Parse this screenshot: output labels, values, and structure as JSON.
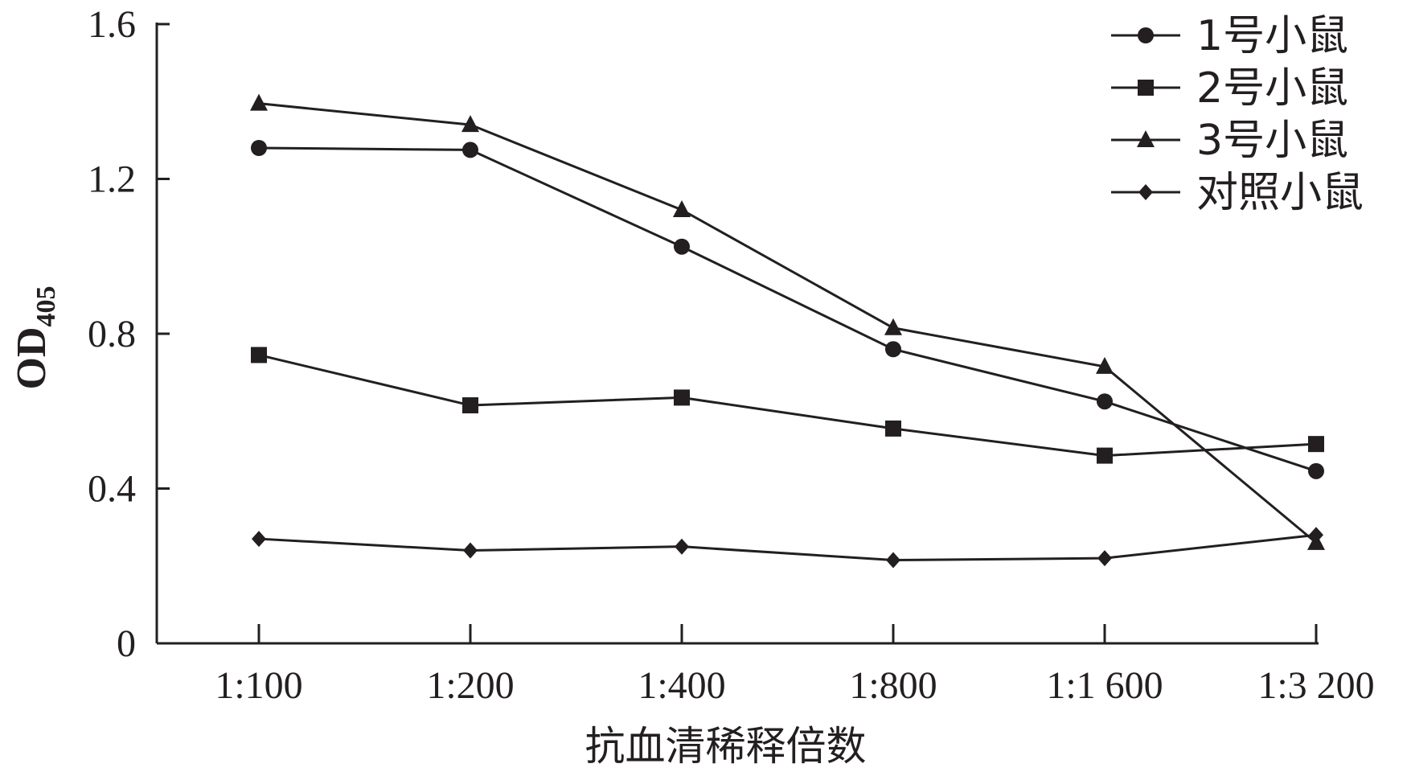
{
  "chart_data": {
    "type": "line",
    "title": "",
    "xlabel": "抗血清稀释倍数",
    "ylabel": "OD",
    "ylabel_subscript": "405",
    "categories": [
      "1:100",
      "1:200",
      "1:400",
      "1:800",
      "1:1 600",
      "1:3 200"
    ],
    "ylim": [
      0,
      1.6
    ],
    "yticks": [
      0,
      0.4,
      0.8,
      1.2,
      1.6
    ],
    "ytick_labels": [
      "0",
      "0.4",
      "0.8",
      "1.2",
      "1.6"
    ],
    "grid": false,
    "legend_position": "top-right",
    "series": [
      {
        "name": "1号小鼠",
        "marker": "circle",
        "values": [
          1.28,
          1.275,
          1.025,
          0.76,
          0.625,
          0.445
        ]
      },
      {
        "name": "2号小鼠",
        "marker": "square",
        "values": [
          0.745,
          0.615,
          0.635,
          0.555,
          0.485,
          0.515
        ]
      },
      {
        "name": "3号小鼠",
        "marker": "triangle",
        "values": [
          1.395,
          1.34,
          1.12,
          0.815,
          0.715,
          0.26
        ]
      },
      {
        "name": "对照小鼠",
        "marker": "diamond",
        "values": [
          0.27,
          0.24,
          0.25,
          0.215,
          0.22,
          0.28
        ]
      }
    ],
    "colors": {
      "ink": "#231f20"
    }
  }
}
